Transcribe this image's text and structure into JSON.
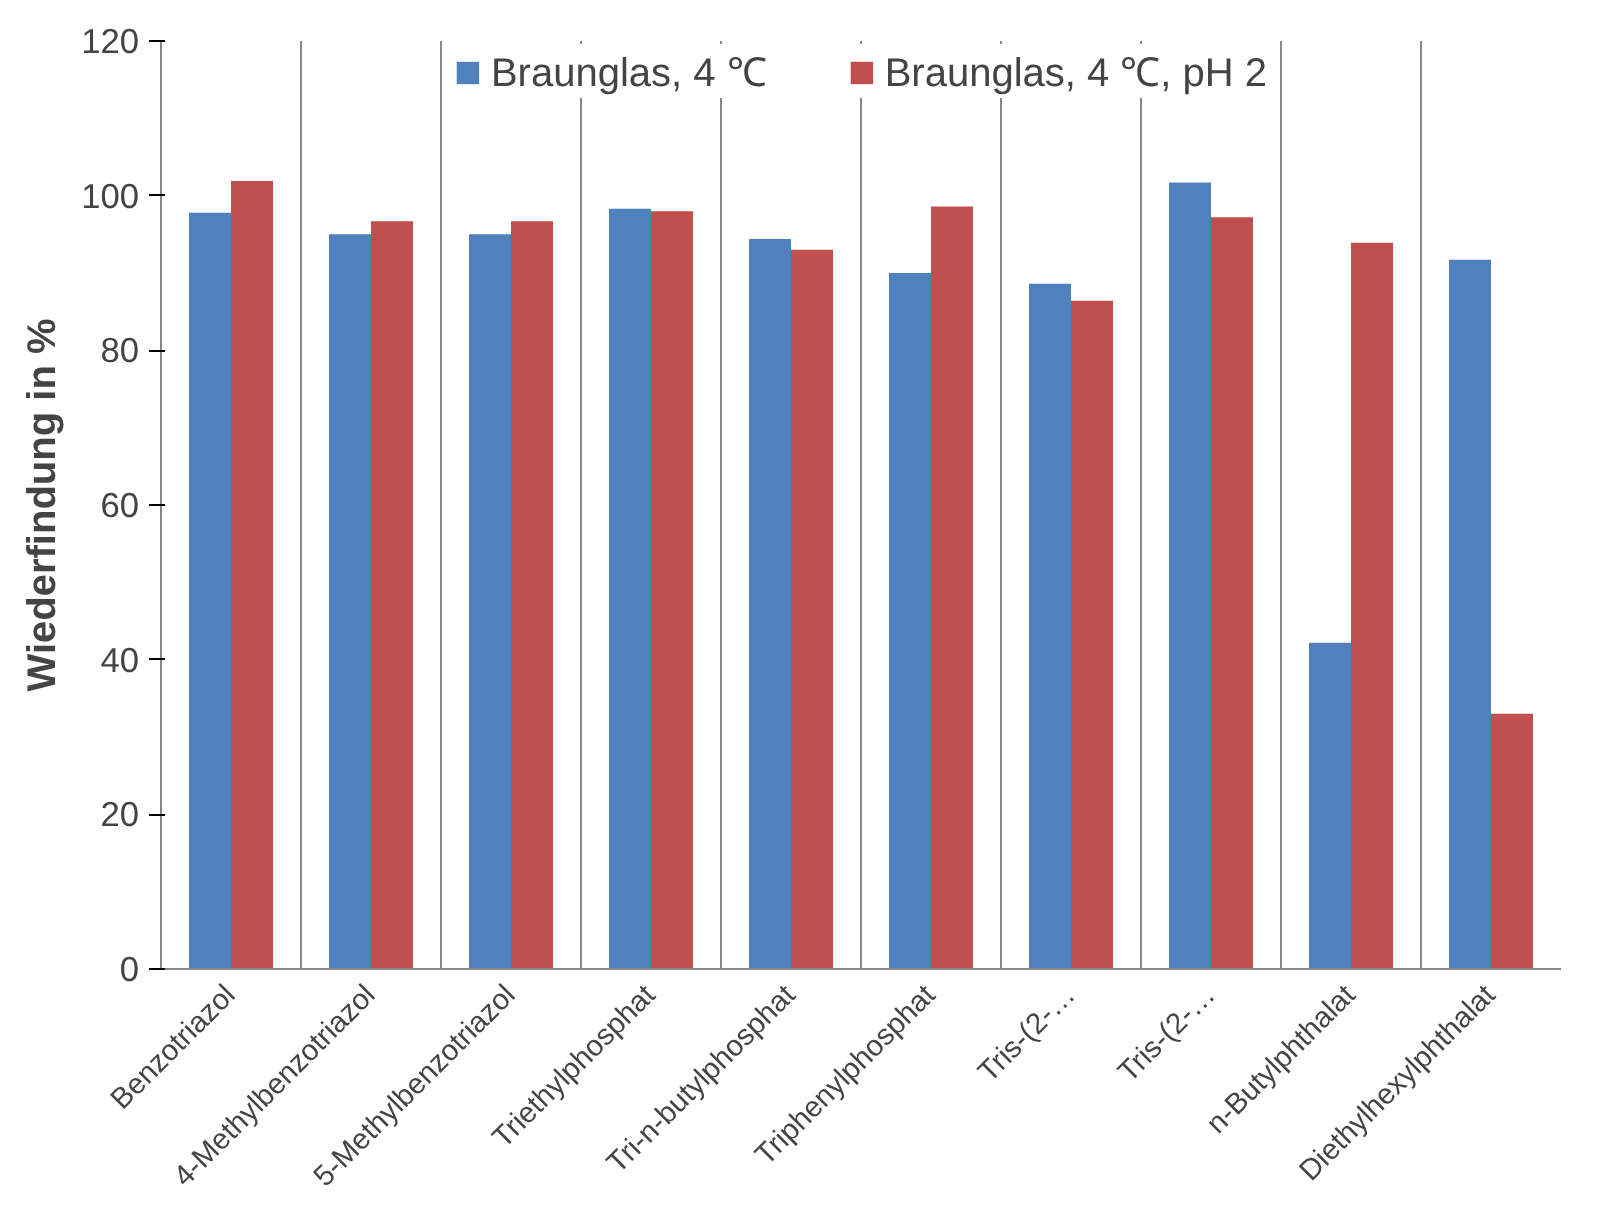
{
  "chart_data": {
    "type": "bar",
    "ylabel": "Wiederfindung in %",
    "categories": [
      "Benzotriazol",
      "4-Methylbenzotriazol",
      "5-Methylbenzotriazol",
      "Triethylphosphat",
      "Tri-n-butylphosphat",
      "Triphenylphosphat",
      "Tris-(2-…",
      "Tris-(2-…",
      "n-Butylphthalat",
      "Diethylhexylphthalat"
    ],
    "series": [
      {
        "name": "Braunglas, 4 ℃",
        "color": "#4f81bd",
        "values": [
          97.8,
          95,
          95,
          98.3,
          94.4,
          90,
          88.6,
          101.7,
          42.2,
          91.7
        ]
      },
      {
        "name": "Braunglas, 4 ℃, pH 2",
        "color": "#c0504d",
        "values": [
          101.9,
          96.7,
          96.7,
          98,
          93,
          98.6,
          86.4,
          97.2,
          93.9,
          33
        ]
      }
    ],
    "ylim": [
      0,
      120
    ],
    "yticks": [
      0,
      20,
      40,
      60,
      80,
      100,
      120
    ],
    "grid": "x",
    "legend": "top"
  }
}
